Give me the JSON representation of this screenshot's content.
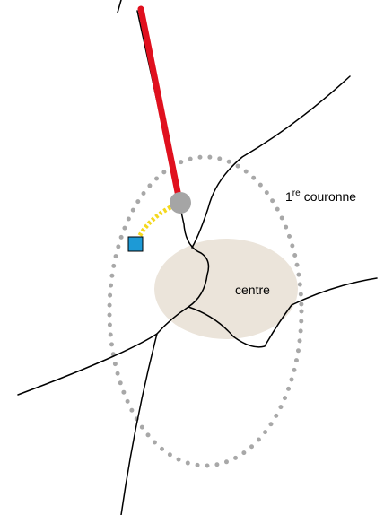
{
  "labels": {
    "ring": {
      "number": "1",
      "superscript": "re",
      "word": "couronne"
    },
    "center": "centre"
  }
}
